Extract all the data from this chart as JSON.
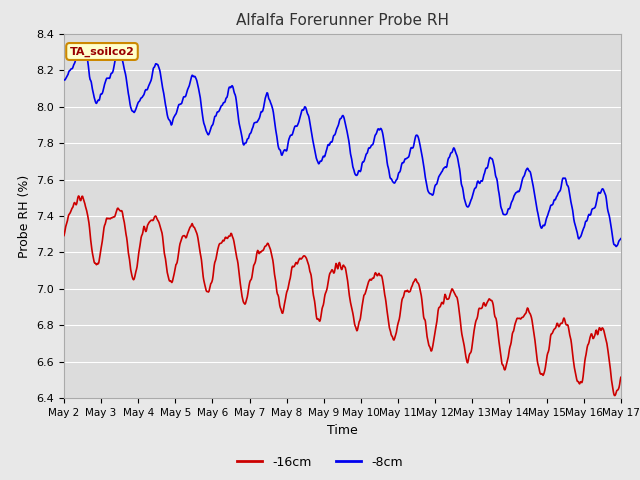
{
  "title": "Alfalfa Forerunner Probe RH",
  "xlabel": "Time",
  "ylabel": "Probe RH (%)",
  "ylim": [
    6.4,
    8.4
  ],
  "xlim": [
    0,
    960
  ],
  "background_color": "#e8e8e8",
  "plot_bg_color": "#dcdcdc",
  "grid_color": "#ffffff",
  "line_color_8cm": "#0000ee",
  "line_color_16cm": "#cc0000",
  "annotation_text": "TA_soilco2",
  "annotation_bg": "#ffffcc",
  "annotation_border": "#cc8800",
  "xtick_labels": [
    "May 2",
    "May 3",
    "May 4",
    "May 5",
    "May 6",
    "May 7",
    "May 8",
    "May 9",
    "May 10",
    "May 11",
    "May 12",
    "May 13",
    "May 14",
    "May 15",
    "May 16",
    "May 17"
  ],
  "xtick_positions": [
    0,
    64,
    128,
    192,
    256,
    320,
    384,
    448,
    512,
    576,
    640,
    704,
    768,
    832,
    896,
    960
  ],
  "ytick_values": [
    6.4,
    6.6,
    6.8,
    7.0,
    7.2,
    7.4,
    7.6,
    7.8,
    8.0,
    8.2,
    8.4
  ],
  "figsize": [
    6.4,
    4.8
  ],
  "dpi": 100
}
